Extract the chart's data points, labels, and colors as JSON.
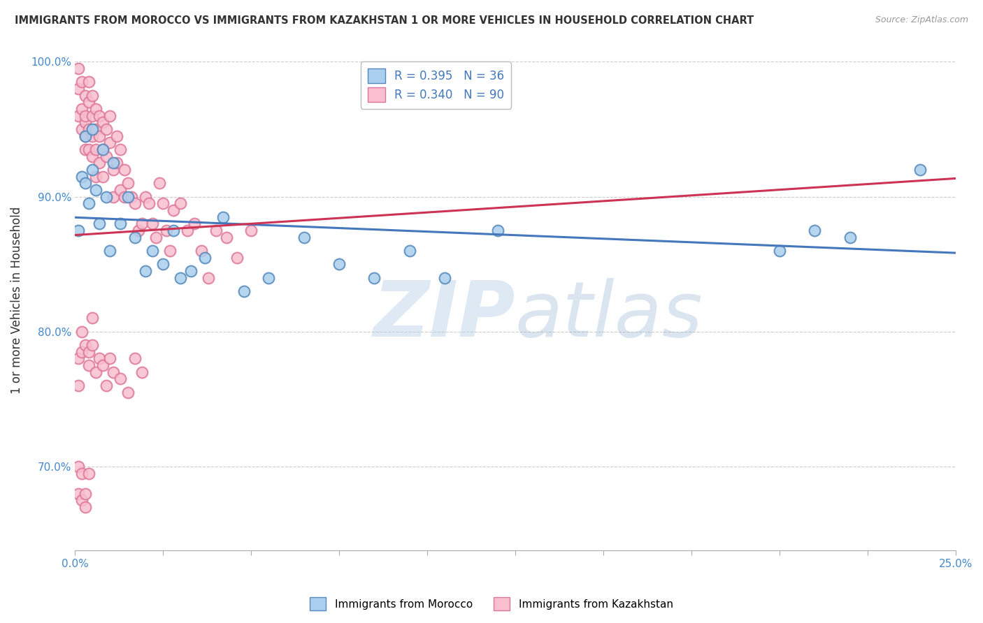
{
  "title": "IMMIGRANTS FROM MOROCCO VS IMMIGRANTS FROM KAZAKHSTAN 1 OR MORE VEHICLES IN HOUSEHOLD CORRELATION CHART",
  "source": "Source: ZipAtlas.com",
  "ylabel": "1 or more Vehicles in Household",
  "xlim": [
    0.0,
    0.25
  ],
  "ylim": [
    0.638,
    1.008
  ],
  "yticks": [
    0.7,
    0.8,
    0.9,
    1.0
  ],
  "ytick_labels": [
    "70.0%",
    "80.0%",
    "90.0%",
    "100.0%"
  ],
  "xticks": [
    0.0,
    0.025,
    0.05,
    0.075,
    0.1,
    0.125,
    0.15,
    0.175,
    0.2,
    0.225,
    0.25
  ],
  "xtick_labels": [
    "0.0%",
    "",
    "",
    "",
    "",
    "",
    "",
    "",
    "",
    "",
    "25.0%"
  ],
  "morocco_color": "#aacfee",
  "morocco_edge": "#5588bb",
  "kazakhstan_color": "#f9bfce",
  "kazakhstan_edge": "#dd7799",
  "morocco_line_color": "#4477bb",
  "kazakhstan_line_color": "#cc3355",
  "legend_label_morocco": "R = 0.395   N = 36",
  "legend_label_kazakhstan": "R = 0.340   N = 90",
  "watermark_zip": "ZIP",
  "watermark_atlas": "atlas",
  "background_color": "#ffffff",
  "grid_color": "#cccccc",
  "title_color": "#333333",
  "axis_label_color": "#4488cc",
  "morocco_x": [
    0.001,
    0.002,
    0.003,
    0.003,
    0.004,
    0.005,
    0.005,
    0.006,
    0.007,
    0.008,
    0.009,
    0.01,
    0.011,
    0.013,
    0.015,
    0.017,
    0.02,
    0.022,
    0.025,
    0.028,
    0.03,
    0.033,
    0.037,
    0.042,
    0.048,
    0.055,
    0.065,
    0.075,
    0.085,
    0.095,
    0.105,
    0.12,
    0.2,
    0.21,
    0.22,
    0.24
  ],
  "morocco_y": [
    0.875,
    0.915,
    0.91,
    0.945,
    0.895,
    0.92,
    0.95,
    0.905,
    0.88,
    0.935,
    0.9,
    0.86,
    0.925,
    0.88,
    0.9,
    0.87,
    0.845,
    0.86,
    0.85,
    0.875,
    0.84,
    0.845,
    0.855,
    0.885,
    0.83,
    0.84,
    0.87,
    0.85,
    0.84,
    0.86,
    0.84,
    0.875,
    0.86,
    0.875,
    0.87,
    0.92
  ],
  "kazakhstan_x": [
    0.001,
    0.001,
    0.001,
    0.002,
    0.002,
    0.002,
    0.003,
    0.003,
    0.003,
    0.003,
    0.003,
    0.004,
    0.004,
    0.004,
    0.004,
    0.005,
    0.005,
    0.005,
    0.005,
    0.006,
    0.006,
    0.006,
    0.006,
    0.007,
    0.007,
    0.007,
    0.008,
    0.008,
    0.008,
    0.009,
    0.009,
    0.01,
    0.01,
    0.011,
    0.011,
    0.012,
    0.012,
    0.013,
    0.013,
    0.014,
    0.014,
    0.015,
    0.016,
    0.017,
    0.018,
    0.019,
    0.02,
    0.021,
    0.022,
    0.023,
    0.024,
    0.025,
    0.026,
    0.027,
    0.028,
    0.03,
    0.032,
    0.034,
    0.036,
    0.038,
    0.04,
    0.043,
    0.046,
    0.05,
    0.001,
    0.001,
    0.002,
    0.002,
    0.003,
    0.004,
    0.004,
    0.005,
    0.005,
    0.006,
    0.007,
    0.008,
    0.009,
    0.01,
    0.011,
    0.013,
    0.015,
    0.017,
    0.019,
    0.001,
    0.001,
    0.002,
    0.002,
    0.003,
    0.003,
    0.004
  ],
  "kazakhstan_y": [
    0.96,
    0.98,
    0.995,
    0.965,
    0.95,
    0.985,
    0.975,
    0.955,
    0.935,
    0.96,
    0.945,
    0.97,
    0.95,
    0.935,
    0.985,
    0.96,
    0.945,
    0.975,
    0.93,
    0.965,
    0.95,
    0.935,
    0.915,
    0.96,
    0.945,
    0.925,
    0.955,
    0.935,
    0.915,
    0.95,
    0.93,
    0.96,
    0.94,
    0.92,
    0.9,
    0.945,
    0.925,
    0.905,
    0.935,
    0.92,
    0.9,
    0.91,
    0.9,
    0.895,
    0.875,
    0.88,
    0.9,
    0.895,
    0.88,
    0.87,
    0.91,
    0.895,
    0.875,
    0.86,
    0.89,
    0.895,
    0.875,
    0.88,
    0.86,
    0.84,
    0.875,
    0.87,
    0.855,
    0.875,
    0.78,
    0.76,
    0.785,
    0.8,
    0.79,
    0.785,
    0.775,
    0.81,
    0.79,
    0.77,
    0.78,
    0.775,
    0.76,
    0.78,
    0.77,
    0.765,
    0.755,
    0.78,
    0.77,
    0.7,
    0.68,
    0.695,
    0.675,
    0.68,
    0.67,
    0.695
  ]
}
